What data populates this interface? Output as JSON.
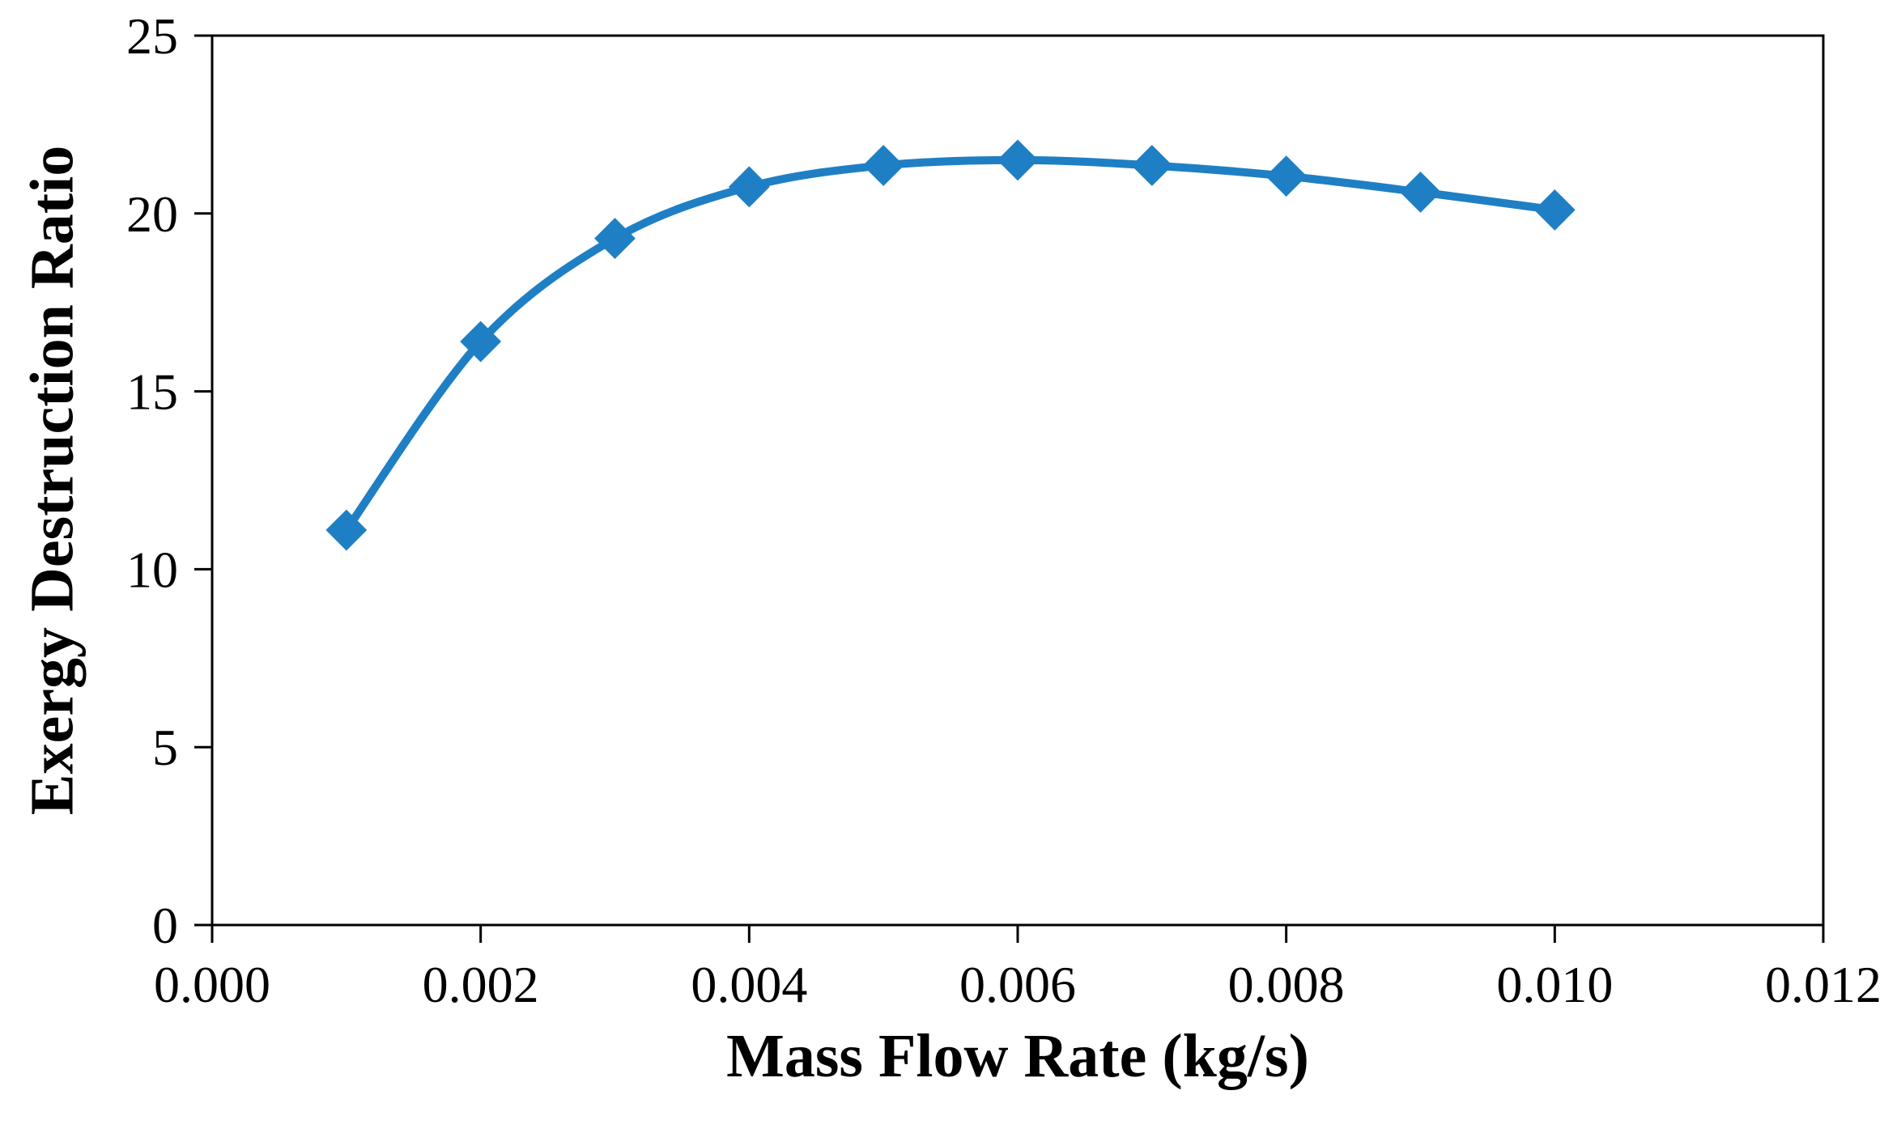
{
  "chart_data": {
    "type": "line",
    "title": "",
    "xlabel": "Mass Flow Rate (kg/s)",
    "ylabel": "Exergy Destruction Ratio",
    "xlim": [
      0.0,
      0.012
    ],
    "ylim": [
      0,
      25
    ],
    "x_ticks": [
      0.0,
      0.002,
      0.004,
      0.006,
      0.008,
      0.01,
      0.012
    ],
    "x_tick_labels": [
      "0.000",
      "0.002",
      "0.004",
      "0.006",
      "0.008",
      "0.010",
      "0.012"
    ],
    "y_ticks": [
      0,
      5,
      10,
      15,
      20,
      25
    ],
    "y_tick_labels": [
      "0",
      "5",
      "10",
      "15",
      "20",
      "25"
    ],
    "grid": false,
    "series": [
      {
        "name": "Exergy Destruction Ratio",
        "color": "#1f7fc4",
        "marker": "diamond",
        "smooth": true,
        "x": [
          0.001,
          0.002,
          0.003,
          0.004,
          0.005,
          0.006,
          0.007,
          0.008,
          0.009,
          0.01
        ],
        "y": [
          11.1,
          16.4,
          19.3,
          20.75,
          21.35,
          21.5,
          21.35,
          21.05,
          20.6,
          20.1
        ]
      }
    ]
  }
}
